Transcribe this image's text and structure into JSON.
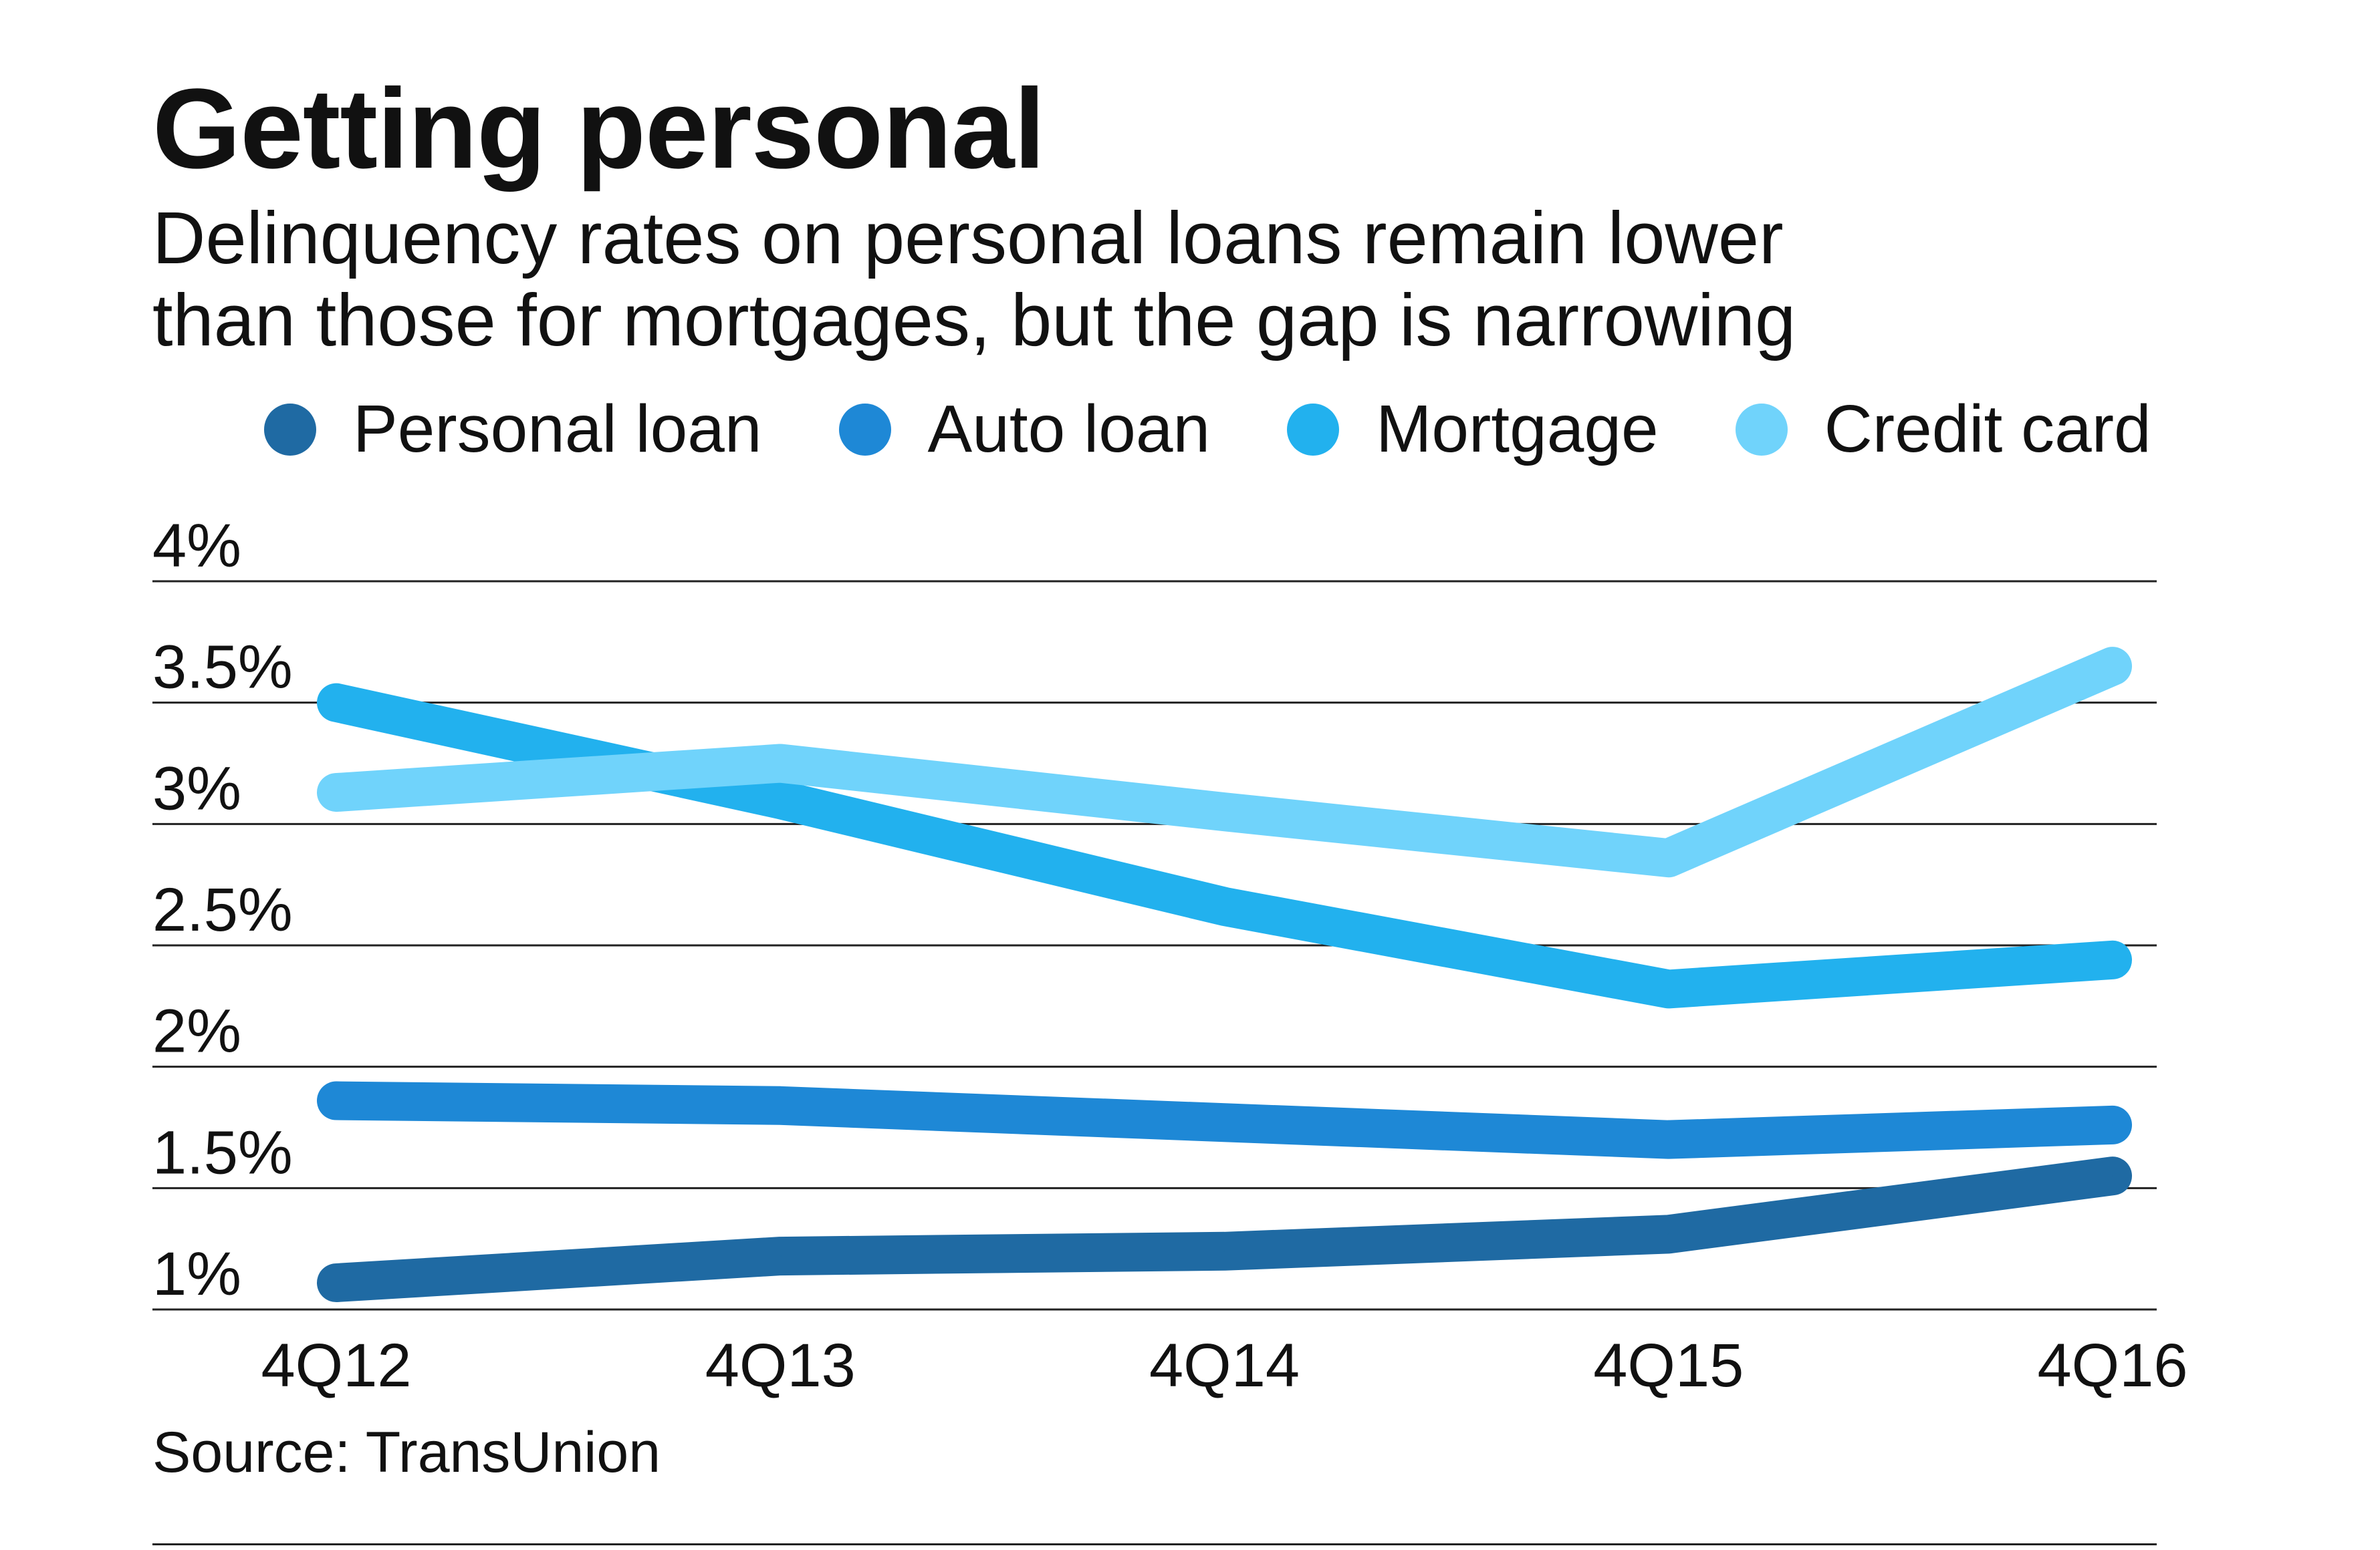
{
  "chart_data": {
    "type": "line",
    "title": "Getting personal",
    "subtitle_lines": [
      "Delinquency rates on personal loans remain lower",
      "than those for mortgages, but the gap is narrowing"
    ],
    "categories": [
      "4Q12",
      "4Q13",
      "4Q14",
      "4Q15",
      "4Q16"
    ],
    "y_ticks": [
      "1%",
      "1.5%",
      "2%",
      "2.5%",
      "3%",
      "3.5%",
      "4%"
    ],
    "y_tick_values": [
      1,
      1.5,
      2,
      2.5,
      3,
      3.5,
      4
    ],
    "ylim": [
      1,
      4
    ],
    "xlabel": "",
    "ylabel": "",
    "grid": true,
    "legend_position": "top",
    "series": [
      {
        "name": "Personal loan",
        "color": "#1f6aa3",
        "values": [
          1.11,
          1.22,
          1.24,
          1.31,
          1.55
        ]
      },
      {
        "name": "Auto loan",
        "color": "#1e88d6",
        "values": [
          1.86,
          1.84,
          1.77,
          1.7,
          1.76
        ]
      },
      {
        "name": "Mortgage",
        "color": "#22b1ee",
        "values": [
          3.5,
          3.1,
          2.66,
          2.32,
          2.44
        ]
      },
      {
        "name": "Credit card",
        "color": "#70d3fb",
        "values": [
          3.13,
          3.25,
          3.05,
          2.86,
          3.65
        ]
      }
    ]
  },
  "footer": {
    "source": "Source: TransUnion"
  }
}
